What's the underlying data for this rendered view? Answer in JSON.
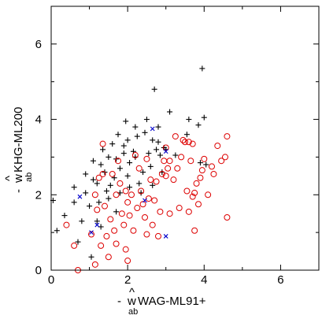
{
  "chart_data": {
    "type": "scatter",
    "title": "",
    "xlabel": {
      "prefix": "- ",
      "hat": "^",
      "symbol": "w",
      "sub": "ab",
      "suffix": "WAG-ML91+"
    },
    "ylabel": {
      "prefix": "- ",
      "hat": "^",
      "symbol": "w",
      "sub": "ab",
      "suffix": "KHG-ML200"
    },
    "xlim": [
      0,
      7
    ],
    "ylim": [
      0,
      7
    ],
    "xticks": [
      "0",
      "2",
      "4",
      "6"
    ],
    "yticks": [
      "0",
      "2",
      "4",
      "6"
    ],
    "xtick_values": [
      0,
      2,
      4,
      6
    ],
    "ytick_values": [
      0,
      2,
      4,
      6
    ],
    "grid": false,
    "series": [
      {
        "marker": "plus",
        "color": "#000000",
        "points": [
          [
            0.05,
            1.85
          ],
          [
            0.15,
            1.05
          ],
          [
            0.35,
            1.45
          ],
          [
            0.6,
            1.8
          ],
          [
            0.6,
            2.2
          ],
          [
            0.7,
            0.75
          ],
          [
            0.8,
            1.3
          ],
          [
            0.9,
            2.05
          ],
          [
            0.9,
            2.55
          ],
          [
            1.0,
            1.7
          ],
          [
            1.05,
            0.35
          ],
          [
            1.1,
            2.4
          ],
          [
            1.1,
            2.9
          ],
          [
            1.2,
            2.3
          ],
          [
            1.2,
            1.3
          ],
          [
            1.25,
            1.8
          ],
          [
            1.3,
            2.8
          ],
          [
            1.3,
            1.15
          ],
          [
            1.35,
            3.2
          ],
          [
            1.4,
            2.6
          ],
          [
            1.45,
            2.1
          ],
          [
            1.5,
            3.0
          ],
          [
            1.5,
            1.9
          ],
          [
            1.55,
            2.25
          ],
          [
            1.6,
            3.35
          ],
          [
            1.65,
            2.45
          ],
          [
            1.7,
            1.55
          ],
          [
            1.7,
            2.95
          ],
          [
            1.75,
            3.6
          ],
          [
            1.8,
            2.7
          ],
          [
            1.8,
            2.05
          ],
          [
            1.9,
            3.1
          ],
          [
            1.9,
            3.3
          ],
          [
            1.95,
            3.95
          ],
          [
            2.0,
            3.45
          ],
          [
            2.0,
            2.5
          ],
          [
            2.05,
            2.85
          ],
          [
            2.05,
            2.2
          ],
          [
            2.15,
            3.15
          ],
          [
            2.2,
            3.8
          ],
          [
            2.2,
            3.0
          ],
          [
            2.25,
            3.55
          ],
          [
            2.3,
            2.3
          ],
          [
            2.35,
            2.05
          ],
          [
            2.4,
            2.6
          ],
          [
            2.45,
            3.65
          ],
          [
            2.5,
            4.0
          ],
          [
            2.55,
            3.1
          ],
          [
            2.6,
            2.75
          ],
          [
            2.65,
            3.45
          ],
          [
            2.65,
            2.25
          ],
          [
            2.7,
            4.8
          ],
          [
            2.75,
            3.2
          ],
          [
            2.8,
            3.8
          ],
          [
            2.8,
            3.4
          ],
          [
            2.85,
            3.05
          ],
          [
            2.9,
            2.6
          ],
          [
            2.95,
            3.25
          ],
          [
            3.0,
            3.2
          ],
          [
            3.1,
            4.2
          ],
          [
            3.25,
            3.05
          ],
          [
            3.55,
            3.6
          ],
          [
            3.6,
            4.0
          ],
          [
            3.85,
            3.85
          ],
          [
            3.9,
            2.85
          ],
          [
            3.95,
            5.35
          ],
          [
            4.0,
            4.05
          ],
          [
            4.05,
            2.8
          ]
        ]
      },
      {
        "marker": "circle",
        "color": "#dd0000",
        "points": [
          [
            0.4,
            1.2
          ],
          [
            0.6,
            0.65
          ],
          [
            0.7,
            0.0
          ],
          [
            1.05,
            0.95
          ],
          [
            1.15,
            2.0
          ],
          [
            1.15,
            0.15
          ],
          [
            1.2,
            1.6
          ],
          [
            1.25,
            2.45
          ],
          [
            1.3,
            0.65
          ],
          [
            1.35,
            3.35
          ],
          [
            1.35,
            2.55
          ],
          [
            1.4,
            1.7
          ],
          [
            1.45,
            0.9
          ],
          [
            1.5,
            0.35
          ],
          [
            1.55,
            1.35
          ],
          [
            1.6,
            2.55
          ],
          [
            1.65,
            1.05
          ],
          [
            1.7,
            2.0
          ],
          [
            1.7,
            0.7
          ],
          [
            1.75,
            2.9
          ],
          [
            1.8,
            2.3
          ],
          [
            1.85,
            1.5
          ],
          [
            1.9,
            1.2
          ],
          [
            1.95,
            0.55
          ],
          [
            1.95,
            2.1
          ],
          [
            2.0,
            0.25
          ],
          [
            2.0,
            1.8
          ],
          [
            2.05,
            1.45
          ],
          [
            2.1,
            2.0
          ],
          [
            2.15,
            1.05
          ],
          [
            2.2,
            3.05
          ],
          [
            2.25,
            1.65
          ],
          [
            2.3,
            2.7
          ],
          [
            2.35,
            2.1
          ],
          [
            2.4,
            1.75
          ],
          [
            2.45,
            1.4
          ],
          [
            2.5,
            2.95
          ],
          [
            2.5,
            0.95
          ],
          [
            2.55,
            1.9
          ],
          [
            2.6,
            2.4
          ],
          [
            2.65,
            1.2
          ],
          [
            2.7,
            1.85
          ],
          [
            2.75,
            2.35
          ],
          [
            2.8,
            0.9
          ],
          [
            2.85,
            1.55
          ],
          [
            2.9,
            2.55
          ],
          [
            2.95,
            2.9
          ],
          [
            3.0,
            2.5
          ],
          [
            3.0,
            3.25
          ],
          [
            3.05,
            2.7
          ],
          [
            3.1,
            1.5
          ],
          [
            3.1,
            2.9
          ],
          [
            3.2,
            2.4
          ],
          [
            3.25,
            3.55
          ],
          [
            3.3,
            2.7
          ],
          [
            3.35,
            1.65
          ],
          [
            3.4,
            3.0
          ],
          [
            3.45,
            3.45
          ],
          [
            3.5,
            3.4
          ],
          [
            3.55,
            2.1
          ],
          [
            3.6,
            3.4
          ],
          [
            3.6,
            1.55
          ],
          [
            3.65,
            2.9
          ],
          [
            3.7,
            1.95
          ],
          [
            3.7,
            3.35
          ],
          [
            3.75,
            2.05
          ],
          [
            3.75,
            1.05
          ],
          [
            3.8,
            2.3
          ],
          [
            3.85,
            1.75
          ],
          [
            3.9,
            2.45
          ],
          [
            3.95,
            2.65
          ],
          [
            4.0,
            2.95
          ],
          [
            4.1,
            2.0
          ],
          [
            4.2,
            2.75
          ],
          [
            4.25,
            2.55
          ],
          [
            4.35,
            3.3
          ],
          [
            4.45,
            2.9
          ],
          [
            4.55,
            3.0
          ],
          [
            4.6,
            3.55
          ],
          [
            4.6,
            1.4
          ]
        ]
      },
      {
        "marker": "x",
        "color": "#0000cc",
        "points": [
          [
            0.75,
            1.95
          ],
          [
            1.05,
            1.0
          ],
          [
            1.2,
            1.2
          ],
          [
            2.45,
            1.85
          ],
          [
            2.65,
            3.75
          ],
          [
            3.0,
            3.15
          ],
          [
            3.0,
            0.9
          ]
        ]
      }
    ]
  }
}
